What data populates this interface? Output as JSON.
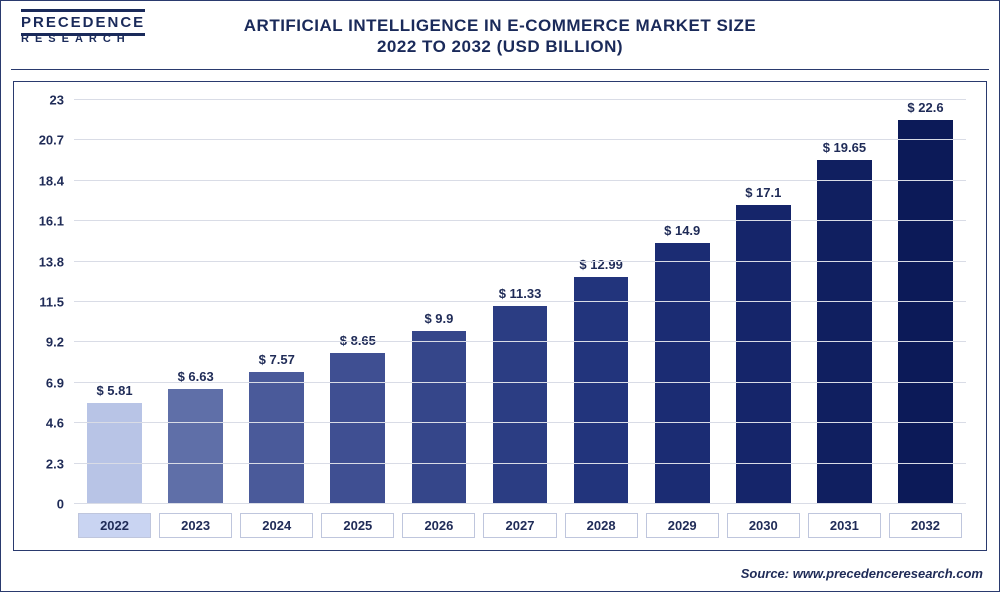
{
  "logo": {
    "top": "PRECEDENCE",
    "bottom": "RESEARCH"
  },
  "title": {
    "line1": "ARTIFICIAL INTELLIGENCE IN E-COMMERCE MARKET SIZE",
    "line2": "2022 TO 2032 (USD BILLION)",
    "fontsize": 17,
    "color": "#1a2a5a"
  },
  "source": "Source: www.precedenceresearch.com",
  "chart": {
    "type": "bar",
    "background_color": "#ffffff",
    "grid_color": "#d9dce6",
    "border_color": "#2a3a6e",
    "ylim": [
      0,
      23
    ],
    "ytick_step": 2.3,
    "yticks": [
      0,
      2.3,
      4.6,
      6.9,
      9.2,
      11.5,
      13.8,
      16.1,
      18.4,
      20.7,
      23
    ],
    "ytick_labels": [
      "0",
      "2.3",
      "4.6",
      "6.9",
      "9.2",
      "11.5",
      "13.8",
      "16.1",
      "18.4",
      "20.7",
      "23"
    ],
    "label_fontsize": 13,
    "label_color": "#1f2b57",
    "value_prefix": "$ ",
    "bar_width": 0.7,
    "categories": [
      "2022",
      "2023",
      "2024",
      "2025",
      "2026",
      "2027",
      "2028",
      "2029",
      "2030",
      "2031",
      "2032"
    ],
    "values": [
      5.81,
      6.63,
      7.57,
      8.65,
      9.9,
      11.33,
      12.99,
      14.9,
      17.1,
      19.65,
      22.6
    ],
    "value_labels": [
      "5.81",
      "6.63",
      "7.57",
      "8.65",
      "9.9",
      "11.33",
      "12.99",
      "14.9",
      "17.1",
      "19.65",
      "22.6"
    ],
    "bar_colors": [
      "#b8c4e6",
      "#5f6fa8",
      "#4a5a9a",
      "#3f4f92",
      "#35468a",
      "#2b3d83",
      "#22347c",
      "#1b2c73",
      "#15256a",
      "#101f60",
      "#0c1a58"
    ],
    "highlight_category_index": 0,
    "x_label_highlight_bg": "#c9d4f2",
    "x_label_bg": "#ffffff",
    "x_label_border": "#bfc6dd"
  }
}
